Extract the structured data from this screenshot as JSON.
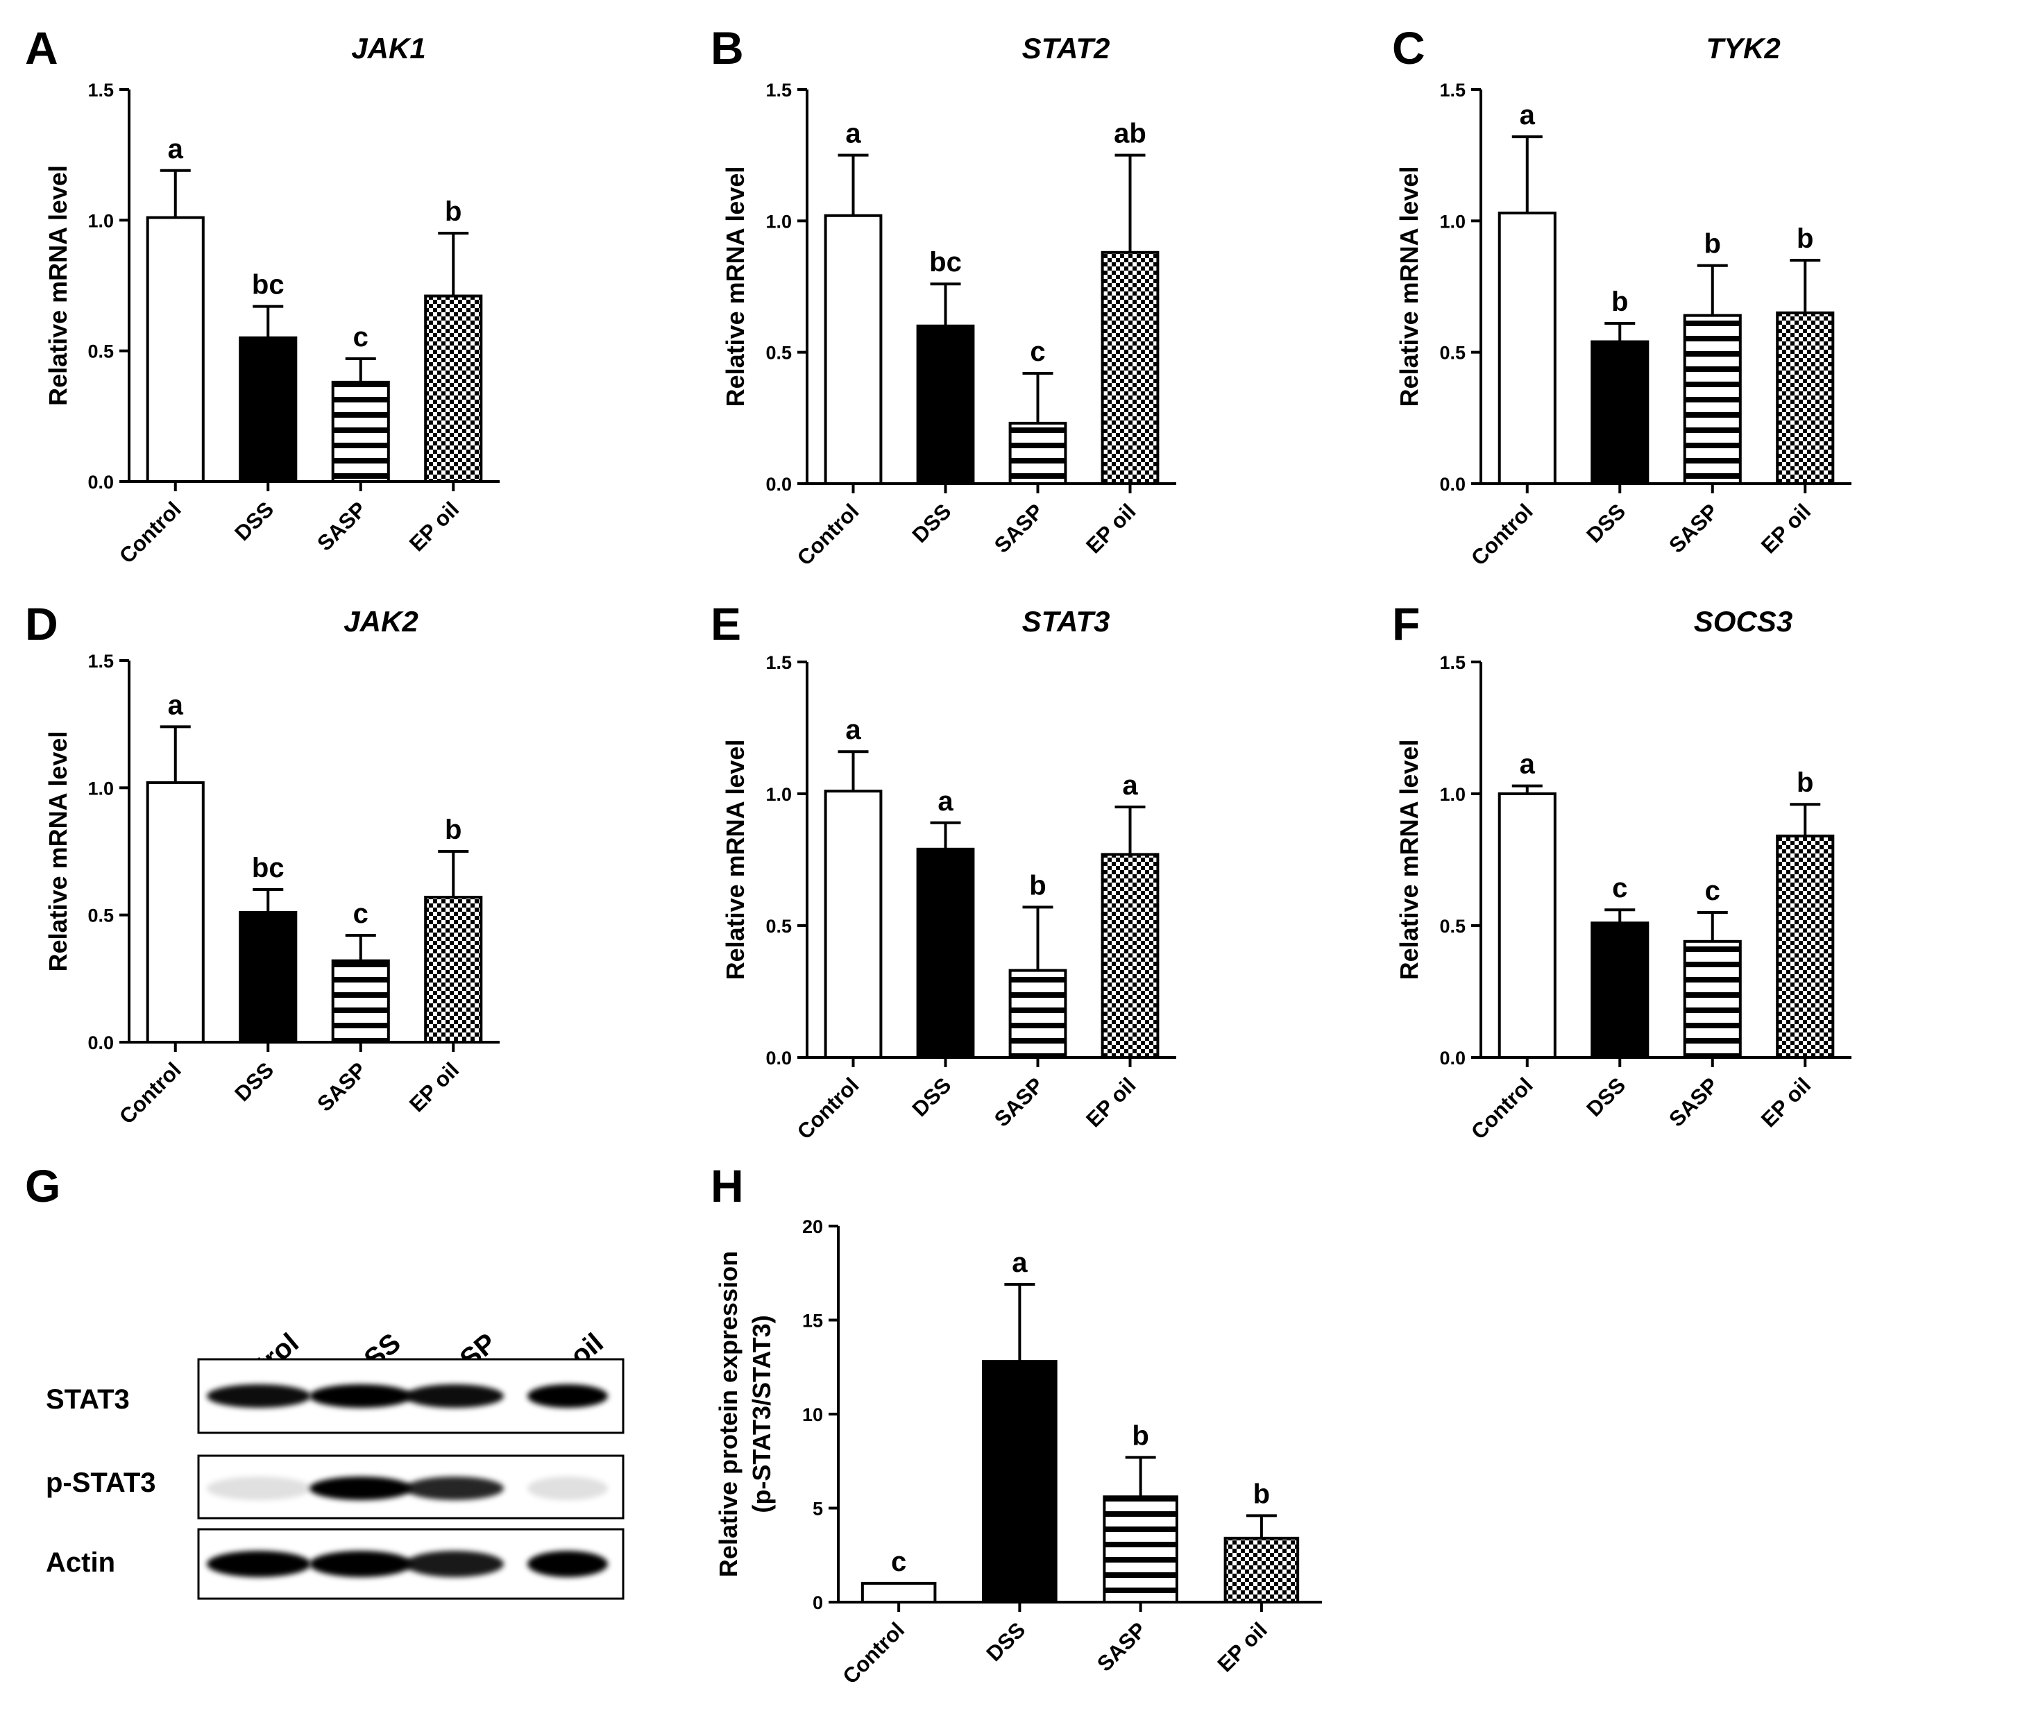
{
  "colors": {
    "ink": "#000000",
    "paper": "#ffffff"
  },
  "patterns": [
    "open",
    "solid",
    "horizontal-stripes",
    "checkerboard"
  ],
  "chart_data": [
    {
      "letter": "A",
      "type": "bar",
      "title": "JAK1",
      "categories": [
        "Control",
        "DSS",
        "SASP",
        "EP oil"
      ],
      "values": [
        1.01,
        0.55,
        0.38,
        0.71
      ],
      "errors": [
        0.18,
        0.12,
        0.09,
        0.24
      ],
      "sig": [
        "a",
        "bc",
        "c",
        "b"
      ],
      "ylabel": "Relative mRNA level",
      "xlabel": "",
      "ylim": [
        0,
        1.5
      ],
      "yticks": [
        "0.0",
        "0.5",
        "1.0",
        "1.5"
      ],
      "grid": false
    },
    {
      "letter": "B",
      "type": "bar",
      "title": "STAT2",
      "categories": [
        "Control",
        "DSS",
        "SASP",
        "EP oil"
      ],
      "values": [
        1.02,
        0.6,
        0.23,
        0.88
      ],
      "errors": [
        0.23,
        0.16,
        0.19,
        0.37
      ],
      "sig": [
        "a",
        "bc",
        "c",
        "ab"
      ],
      "ylabel": "Relative mRNA level",
      "xlabel": "",
      "ylim": [
        0,
        1.5
      ],
      "yticks": [
        "0.0",
        "0.5",
        "1.0",
        "1.5"
      ],
      "grid": false
    },
    {
      "letter": "C",
      "type": "bar",
      "title": "TYK2",
      "categories": [
        "Control",
        "DSS",
        "SASP",
        "EP oil"
      ],
      "values": [
        1.03,
        0.54,
        0.64,
        0.65
      ],
      "errors": [
        0.29,
        0.07,
        0.19,
        0.2
      ],
      "sig": [
        "a",
        "b",
        "b",
        "b"
      ],
      "ylabel": "Relative mRNA level",
      "xlabel": "",
      "ylim": [
        0,
        1.5
      ],
      "yticks": [
        "0.0",
        "0.5",
        "1.0",
        "1.5"
      ],
      "grid": false
    },
    {
      "letter": "D",
      "type": "bar",
      "title": "JAK2",
      "categories": [
        "Control",
        "DSS",
        "SASP",
        "EP oil"
      ],
      "values": [
        1.02,
        0.51,
        0.32,
        0.57
      ],
      "errors": [
        0.22,
        0.09,
        0.1,
        0.18
      ],
      "sig": [
        "a",
        "bc",
        "c",
        "b"
      ],
      "ylabel": "Relative mRNA level",
      "xlabel": "",
      "ylim": [
        0,
        1.5
      ],
      "yticks": [
        "0.0",
        "0.5",
        "1.0",
        "1.5"
      ],
      "grid": false
    },
    {
      "letter": "E",
      "type": "bar",
      "title": "STAT3",
      "categories": [
        "Control",
        "DSS",
        "SASP",
        "EP oil"
      ],
      "values": [
        1.01,
        0.79,
        0.33,
        0.77
      ],
      "errors": [
        0.15,
        0.1,
        0.24,
        0.18
      ],
      "sig": [
        "a",
        "a",
        "b",
        "a"
      ],
      "ylabel": "Relative mRNA level",
      "xlabel": "",
      "ylim": [
        0,
        1.5
      ],
      "yticks": [
        "0.0",
        "0.5",
        "1.0",
        "1.5"
      ],
      "grid": false
    },
    {
      "letter": "F",
      "type": "bar",
      "title": "SOCS3",
      "categories": [
        "Control",
        "DSS",
        "SASP",
        "EP oil"
      ],
      "values": [
        1.0,
        0.51,
        0.44,
        0.84
      ],
      "errors": [
        0.03,
        0.05,
        0.11,
        0.12
      ],
      "sig": [
        "a",
        "c",
        "c",
        "b"
      ],
      "ylabel": "Relative mRNA level",
      "xlabel": "",
      "ylim": [
        0,
        1.5
      ],
      "yticks": [
        "0.0",
        "0.5",
        "1.0",
        "1.5"
      ],
      "grid": false
    },
    {
      "letter": "H",
      "type": "bar",
      "title": "",
      "categories": [
        "Control",
        "DSS",
        "SASP",
        "EP oil"
      ],
      "values": [
        1.0,
        12.8,
        5.6,
        3.4
      ],
      "errors": [
        0.0,
        4.1,
        2.1,
        1.2
      ],
      "sig": [
        "c",
        "a",
        "b",
        "b"
      ],
      "ylabel": "Relative protein expression",
      "ylabel2": "(p-STAT3/STAT3)",
      "xlabel": "",
      "ylim": [
        0,
        20
      ],
      "yticks": [
        "0",
        "5",
        "10",
        "15",
        "20"
      ],
      "grid": false
    }
  ],
  "blot": {
    "letter": "G",
    "lanes": [
      "Control",
      "DSS",
      "SASP",
      "EP oil"
    ],
    "rows": [
      {
        "label": "STAT3",
        "intensity": [
          0.95,
          1.0,
          0.95,
          1.0
        ]
      },
      {
        "label": "p-STAT3",
        "intensity": [
          0.12,
          1.0,
          0.85,
          0.12
        ]
      },
      {
        "label": "Actin",
        "intensity": [
          1.0,
          1.0,
          0.9,
          1.0
        ]
      }
    ]
  }
}
